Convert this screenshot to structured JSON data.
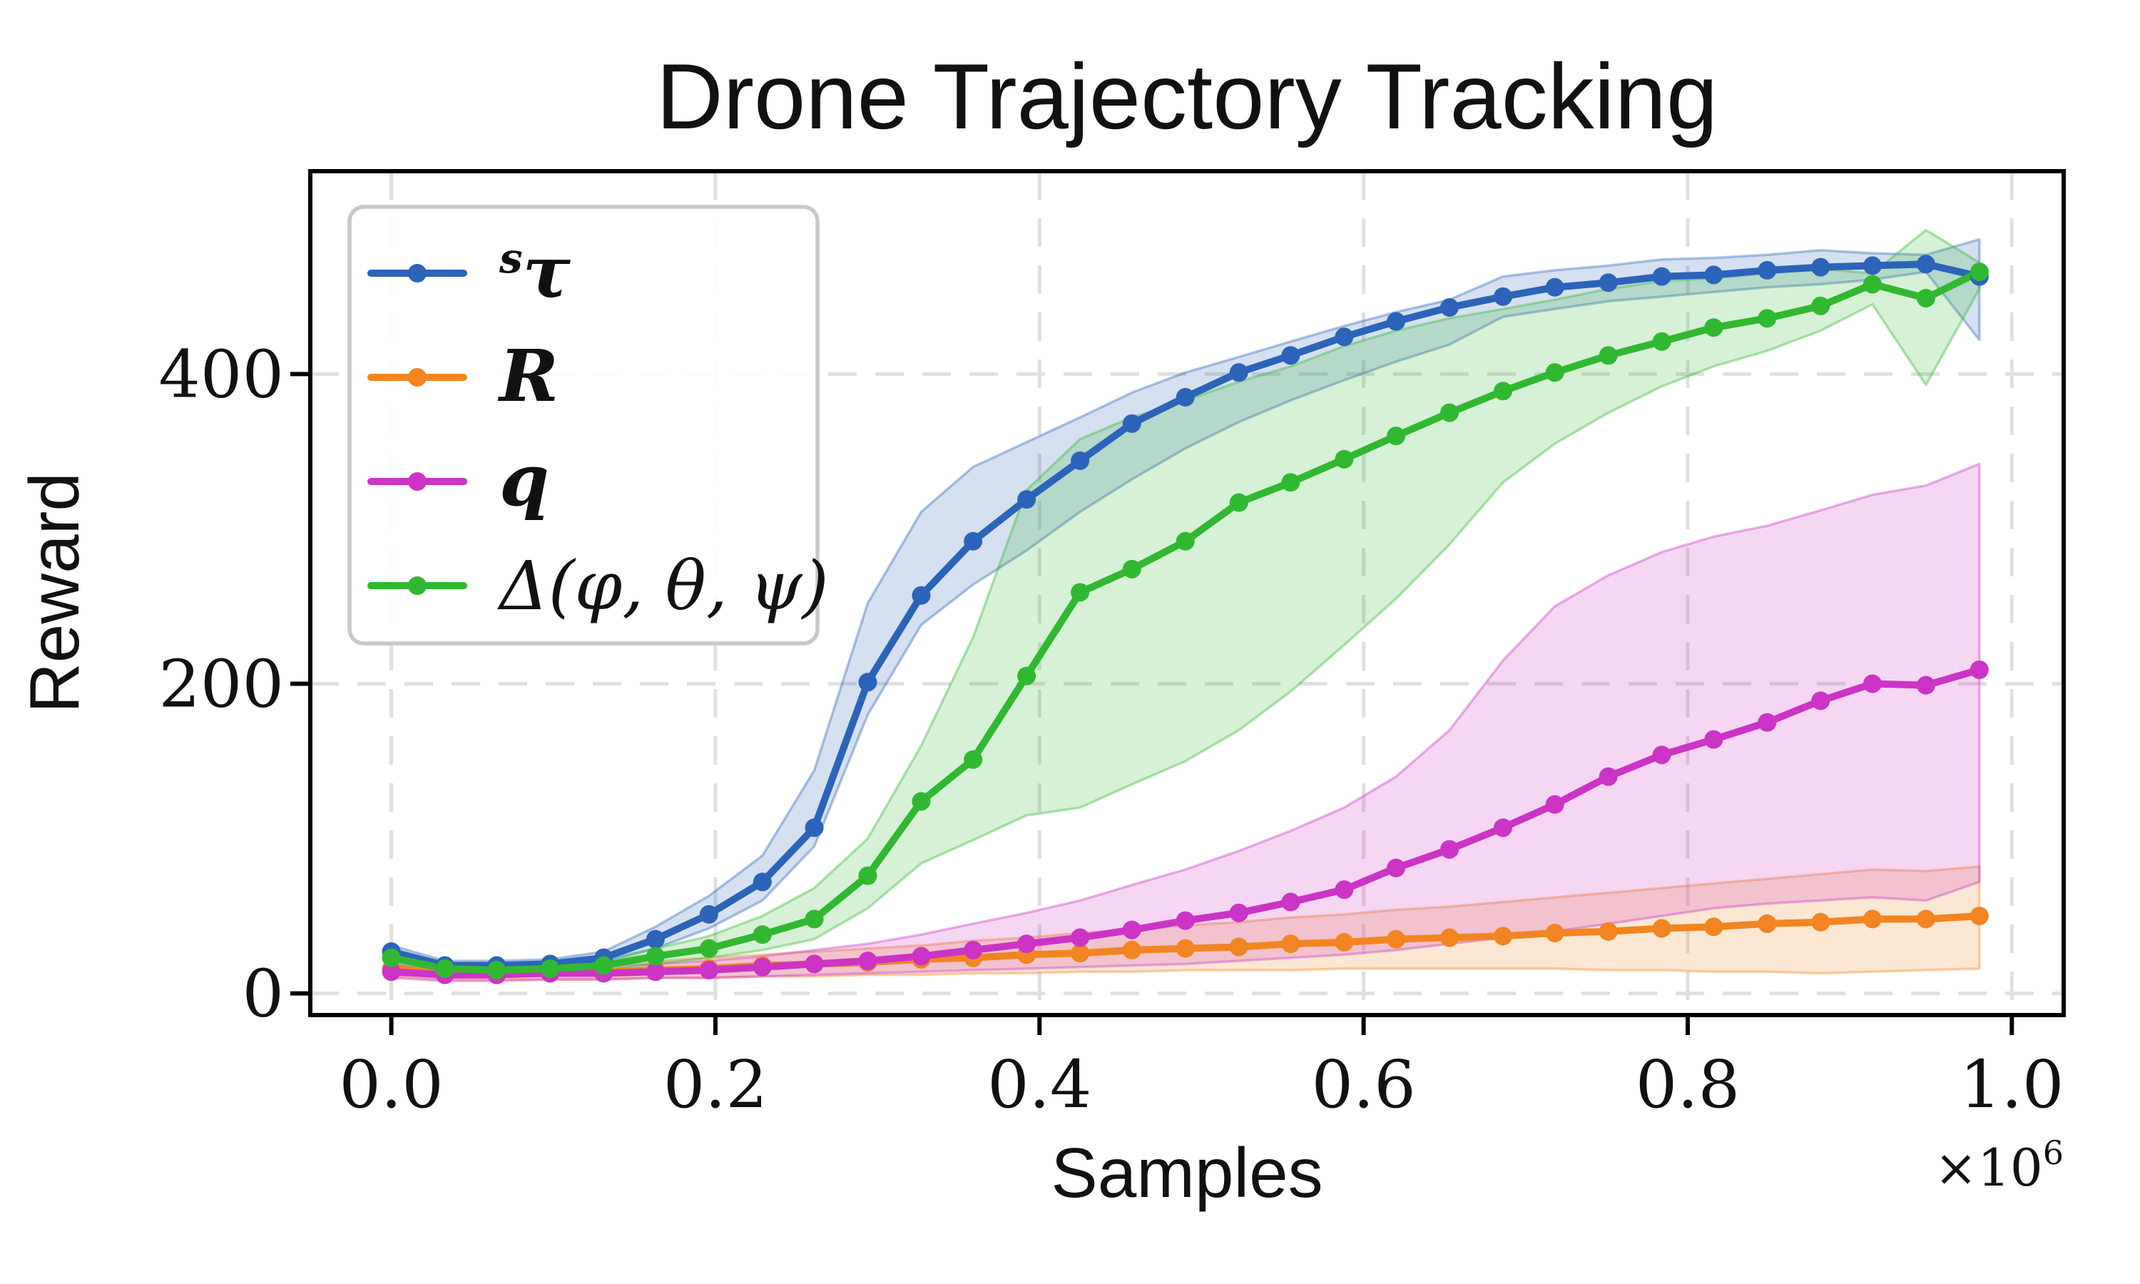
{
  "chart_data": {
    "type": "line",
    "title": "Drone Trajectory Tracking",
    "xlabel": "Samples",
    "ylabel": "Reward",
    "offset_base": "×10",
    "offset_exp": "6",
    "x_unit_multiplier": 1000000,
    "xlim": [
      -0.05,
      1.032
    ],
    "ylim": [
      -14,
      531
    ],
    "grid": true,
    "legend_position": "upper left",
    "x_tick_values": [
      0.0,
      0.2,
      0.4,
      0.6,
      0.8,
      1.0
    ],
    "x_tick_labels": [
      "0.0",
      "0.2",
      "0.4",
      "0.6",
      "0.8",
      "1.0"
    ],
    "y_tick_values": [
      0,
      200,
      400
    ],
    "y_tick_labels": [
      "0",
      "200",
      "400"
    ],
    "x": [
      0,
      0.033,
      0.065,
      0.098,
      0.131,
      0.163,
      0.196,
      0.229,
      0.261,
      0.294,
      0.327,
      0.359,
      0.392,
      0.425,
      0.457,
      0.49,
      0.523,
      0.555,
      0.588,
      0.62,
      0.653,
      0.686,
      0.718,
      0.751,
      0.784,
      0.816,
      0.849,
      0.882,
      0.914,
      0.947,
      0.98
    ],
    "series": [
      {
        "name": "s_tau",
        "label_sup": "s",
        "label": "τ",
        "bold": true,
        "color": "#2b64b8",
        "values": [
          27,
          18,
          18,
          19,
          23,
          35,
          51,
          72,
          107,
          201,
          257,
          292,
          319,
          344,
          368,
          385,
          401,
          412,
          424,
          434,
          443,
          450,
          456,
          459,
          463,
          464,
          467,
          469,
          470,
          471,
          463
        ],
        "band_lo": [
          23,
          15,
          15,
          16,
          20,
          29,
          42,
          60,
          95,
          180,
          238,
          264,
          286,
          311,
          332,
          352,
          369,
          383,
          396,
          408,
          419,
          437,
          442,
          447,
          450,
          453,
          456,
          458,
          461,
          466,
          422
        ],
        "band_hi": [
          31,
          21,
          21,
          22,
          27,
          43,
          63,
          89,
          144,
          252,
          311,
          340,
          356,
          372,
          388,
          401,
          411,
          421,
          431,
          440,
          448,
          463,
          467,
          470,
          474,
          475,
          477,
          480,
          478,
          477,
          487
        ]
      },
      {
        "name": "R",
        "label_sup": "",
        "label": "R",
        "bold": true,
        "color": "#f28522",
        "values": [
          16,
          13,
          13,
          14,
          14,
          15,
          16,
          18,
          19,
          20,
          22,
          23,
          25,
          26,
          28,
          29,
          30,
          32,
          33,
          35,
          36,
          37,
          39,
          40,
          42,
          43,
          45,
          46,
          48,
          48,
          50
        ],
        "band_lo": [
          11,
          9,
          9,
          9,
          9,
          10,
          10,
          11,
          11,
          12,
          12,
          13,
          13,
          14,
          14,
          15,
          15,
          15,
          16,
          16,
          16,
          16,
          16,
          15,
          15,
          14,
          14,
          13,
          14,
          15,
          16
        ],
        "band_hi": [
          21,
          18,
          18,
          19,
          20,
          21,
          23,
          25,
          27,
          29,
          31,
          34,
          36,
          39,
          41,
          44,
          46,
          49,
          51,
          54,
          56,
          59,
          62,
          65,
          68,
          71,
          74,
          77,
          80,
          79,
          82
        ]
      },
      {
        "name": "q",
        "label_sup": "",
        "label": "q",
        "bold": true,
        "color": "#cb34c5",
        "values": [
          14,
          12,
          12,
          13,
          13,
          14,
          15,
          17,
          19,
          21,
          24,
          28,
          32,
          36,
          41,
          47,
          52,
          59,
          67,
          81,
          93,
          107,
          122,
          140,
          154,
          164,
          175,
          189,
          200,
          199,
          209
        ],
        "band_lo": [
          10,
          8,
          8,
          9,
          9,
          10,
          10,
          11,
          12,
          13,
          14,
          15,
          16,
          17,
          18,
          19,
          21,
          23,
          25,
          28,
          32,
          36,
          40,
          45,
          50,
          55,
          58,
          60,
          62,
          60,
          72
        ],
        "band_hi": [
          19,
          16,
          16,
          17,
          18,
          19,
          21,
          24,
          28,
          32,
          38,
          45,
          52,
          60,
          70,
          80,
          92,
          105,
          120,
          140,
          170,
          215,
          250,
          270,
          285,
          295,
          302,
          312,
          322,
          328,
          342
        ]
      },
      {
        "name": "delta_phi_theta_psi",
        "label_sup": "",
        "label": "Δ(φ, θ, ψ)",
        "bold": false,
        "color": "#31b831",
        "values": [
          23,
          16,
          15,
          16,
          18,
          24,
          29,
          38,
          48,
          76,
          124,
          151,
          205,
          259,
          274,
          292,
          317,
          330,
          345,
          360,
          375,
          389,
          401,
          412,
          421,
          430,
          436,
          444,
          458,
          449,
          466
        ],
        "band_lo": [
          19,
          13,
          12,
          13,
          15,
          19,
          23,
          28,
          35,
          55,
          84,
          99,
          115,
          120,
          135,
          150,
          170,
          195,
          225,
          255,
          290,
          330,
          355,
          375,
          392,
          405,
          415,
          428,
          445,
          393,
          455
        ],
        "band_hi": [
          27,
          19,
          18,
          19,
          22,
          29,
          37,
          50,
          68,
          100,
          160,
          230,
          325,
          358,
          372,
          383,
          395,
          405,
          418,
          428,
          436,
          442,
          448,
          455,
          460,
          462,
          465,
          468,
          465,
          493,
          472
        ]
      }
    ]
  }
}
